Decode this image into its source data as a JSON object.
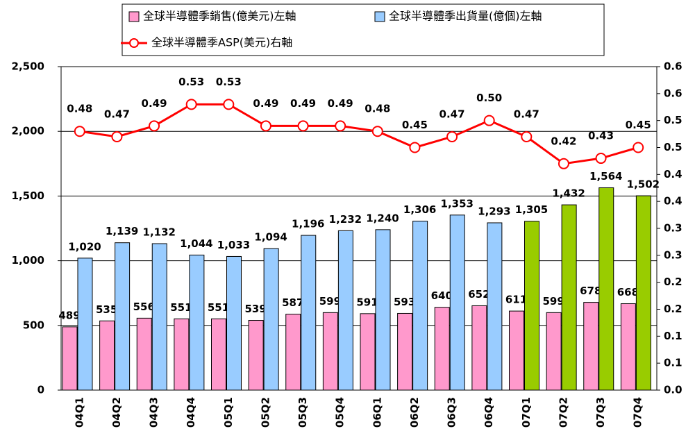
{
  "chart_data": {
    "type": "bar-line",
    "categories": [
      "04Q1",
      "04Q2",
      "04Q3",
      "04Q4",
      "05Q1",
      "05Q2",
      "05Q3",
      "05Q4",
      "06Q1",
      "06Q2",
      "06Q3",
      "06Q4",
      "07Q1",
      "07Q2",
      "07Q3",
      "07Q4"
    ],
    "series": [
      {
        "name": "全球半導體季銷售(億美元)左軸",
        "color": "#ff99cc",
        "type": "bar",
        "values": [
          489,
          535,
          556,
          551,
          551,
          539,
          587,
          599,
          591,
          593,
          640,
          652,
          611,
          599,
          678,
          668
        ]
      },
      {
        "name": "全球半導體季出貨量(億個)左軸",
        "color": "#99ccff",
        "type": "bar",
        "colors": [
          "#99ccff",
          "#99ccff",
          "#99ccff",
          "#99ccff",
          "#99ccff",
          "#99ccff",
          "#99ccff",
          "#99ccff",
          "#99ccff",
          "#99ccff",
          "#99ccff",
          "#99ccff",
          "#99cc00",
          "#99cc00",
          "#99cc00",
          "#99cc00"
        ],
        "values": [
          1020,
          1139,
          1132,
          1044,
          1033,
          1094,
          1196,
          1232,
          1240,
          1306,
          1353,
          1293,
          1305,
          1432,
          1564,
          1502
        ],
        "value_labels": [
          "1,020",
          "1,139",
          "1,132",
          "1,044",
          "1,033",
          "1,094",
          "1,196",
          "1,232",
          "1,240",
          "1,306",
          "1,353",
          "1,293",
          "1,305",
          "1,432",
          "1,564",
          "1,502"
        ]
      },
      {
        "name": "全球半導體季ASP(美元)右軸",
        "color": "#ff0000",
        "type": "line",
        "axis": "y2",
        "values": [
          0.48,
          0.47,
          0.49,
          0.53,
          0.53,
          0.49,
          0.49,
          0.49,
          0.48,
          0.45,
          0.47,
          0.5,
          0.47,
          0.42,
          0.43,
          0.45
        ],
        "value_labels": [
          "0.48",
          "0.47",
          "0.49",
          "0.53",
          "0.53",
          "0.49",
          "0.49",
          "0.49",
          "0.48",
          "0.45",
          "0.47",
          "0.50",
          "0.47",
          "0.42",
          "0.43",
          "0.45"
        ]
      }
    ],
    "ylim": [
      0,
      2500
    ],
    "yticks": [
      0,
      500,
      {
        "value": 1000,
        "label": "1,000"
      },
      {
        "value": 1500,
        "label": "1,500"
      },
      {
        "value": 2000,
        "label": "2,000"
      },
      {
        "value": 2500,
        "label": "2,500"
      }
    ],
    "y2lim": [
      0,
      0.6
    ],
    "y2ticks": [
      {
        "value": 0,
        "label": "0.0"
      },
      {
        "value": 0.05,
        "label": "0.1"
      },
      0.1,
      {
        "value": 0.15,
        "label": "0.2"
      },
      0.2,
      {
        "value": 0.25,
        "label": "0.3"
      },
      0.3,
      {
        "value": 0.35,
        "label": "0.4"
      },
      0.4,
      {
        "value": 0.45,
        "label": "0.5"
      },
      0.5,
      {
        "value": 0.55,
        "label": "0.6"
      },
      0.6
    ],
    "grid": true
  }
}
